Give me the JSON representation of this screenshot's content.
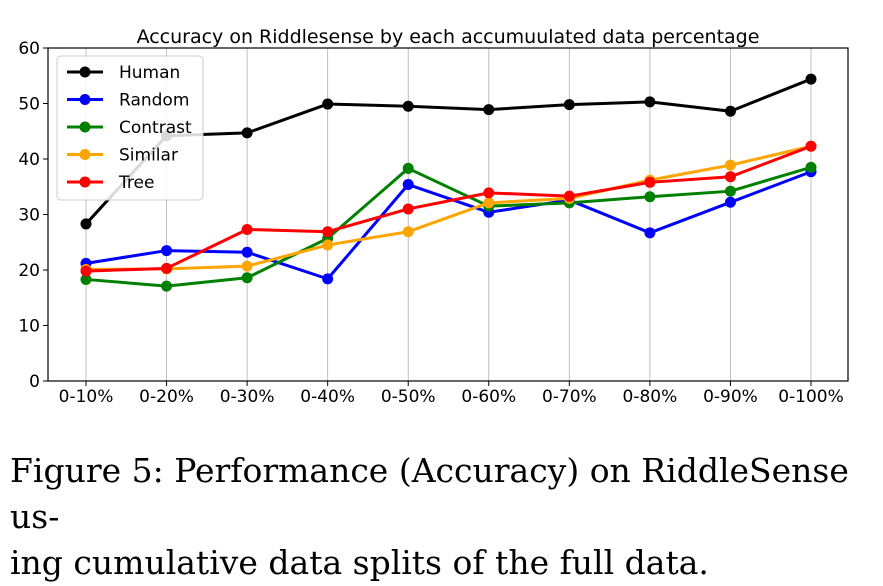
{
  "chart_data": {
    "type": "line",
    "title": "Accuracy on Riddlesense by each accumuulated data percentage",
    "xlabel": "",
    "ylabel": "",
    "categories": [
      "0-10%",
      "0-20%",
      "0-30%",
      "0-40%",
      "0-50%",
      "0-60%",
      "0-70%",
      "0-80%",
      "0-90%",
      "0-100%"
    ],
    "ylim": [
      0,
      60
    ],
    "yticks": [
      0,
      10,
      20,
      30,
      40,
      50,
      60
    ],
    "grid": "vertical",
    "legend_position": "top-left",
    "series": [
      {
        "name": "Human",
        "color": "#000000",
        "values": [
          28.3,
          44.2,
          44.7,
          49.9,
          49.5,
          48.9,
          49.8,
          50.3,
          48.6,
          54.4
        ]
      },
      {
        "name": "Random",
        "color": "#0000ff",
        "values": [
          21.2,
          23.5,
          23.2,
          18.4,
          35.4,
          30.4,
          32.6,
          26.7,
          32.2,
          37.7
        ]
      },
      {
        "name": "Contrast",
        "color": "#008000",
        "values": [
          18.3,
          17.1,
          18.6,
          25.7,
          38.3,
          31.5,
          32.1,
          33.2,
          34.2,
          38.5
        ]
      },
      {
        "name": "Similar",
        "color": "#ffa500",
        "values": [
          20.1,
          20.2,
          20.7,
          24.5,
          26.9,
          32.1,
          32.9,
          36.2,
          38.9,
          42.3
        ]
      },
      {
        "name": "Tree",
        "color": "#ff0000",
        "values": [
          19.8,
          20.3,
          27.3,
          26.9,
          31.0,
          33.9,
          33.3,
          35.8,
          36.8,
          42.3
        ]
      }
    ]
  },
  "caption": {
    "line1": "Figure 5: Performance (Accuracy) on RiddleSense us-",
    "line2": "ing cumulative data splits of the full data."
  }
}
